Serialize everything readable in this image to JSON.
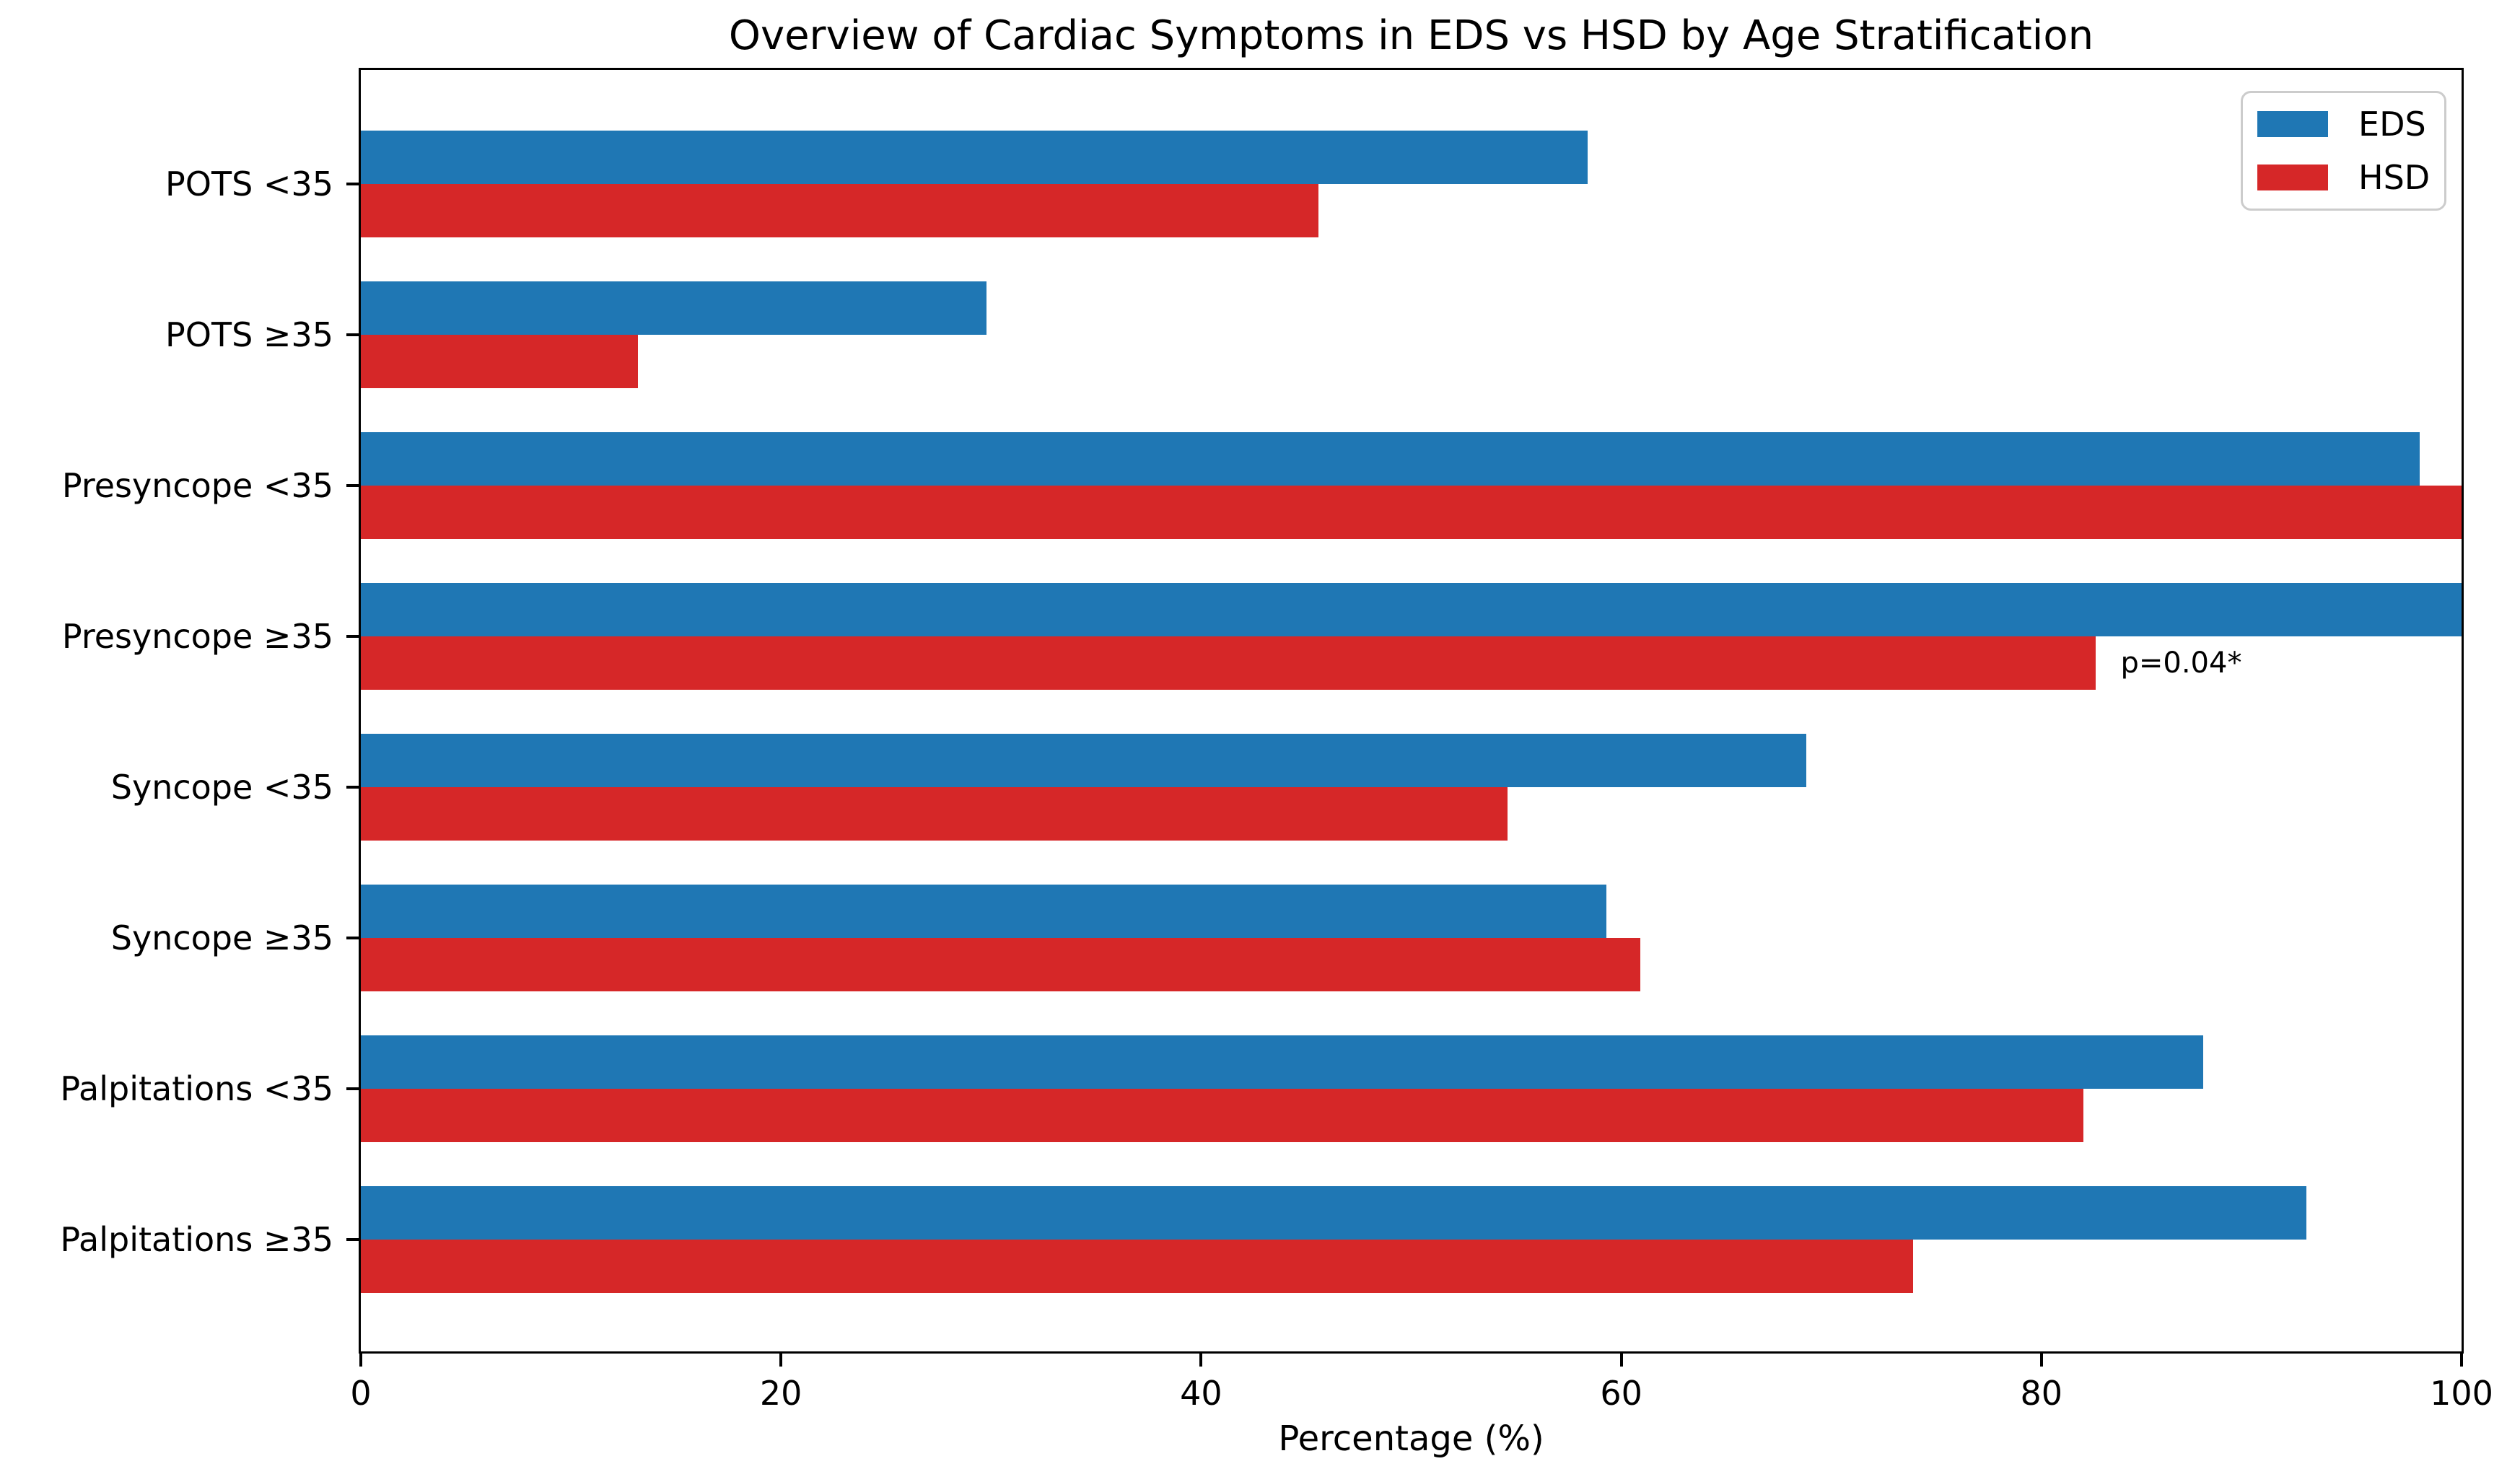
{
  "figure": {
    "background": "#ffffff"
  },
  "chart_data": {
    "type": "bar",
    "orientation": "horizontal",
    "title": "Overview of Cardiac Symptoms in EDS vs HSD by Age Stratification",
    "xlabel": "Percentage (%)",
    "ylabel": "",
    "xlim": [
      0,
      100
    ],
    "xticks": [
      0,
      20,
      40,
      60,
      80,
      100
    ],
    "grid": false,
    "legend_position": "upper right",
    "categories": [
      "POTS <35",
      "POTS ≥35",
      "Presyncope <35",
      "Presyncope ≥35",
      "Syncope <35",
      "Syncope ≥35",
      "Palpitations <35",
      "Palpitations ≥35"
    ],
    "series": [
      {
        "name": "EDS",
        "color": "#1f77b4",
        "values": [
          58.4,
          29.8,
          98.0,
          100.0,
          68.8,
          59.3,
          87.7,
          92.6
        ]
      },
      {
        "name": "HSD",
        "color": "#d62728",
        "values": [
          45.6,
          13.2,
          100.0,
          82.6,
          54.6,
          60.9,
          82.0,
          73.9
        ]
      }
    ],
    "annotations": [
      {
        "text": "p=0.04*",
        "category": "Presyncope ≥35",
        "series": "HSD",
        "value": 82.6
      }
    ]
  },
  "legend": {
    "items": [
      {
        "label": "EDS",
        "color": "#1f77b4"
      },
      {
        "label": "HSD",
        "color": "#d62728"
      }
    ]
  }
}
